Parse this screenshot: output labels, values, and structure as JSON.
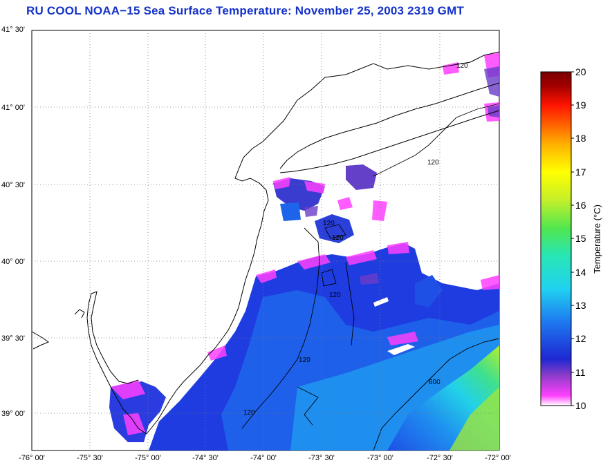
{
  "title": "RU COOL  NOAA−15  Sea Surface Temperature:  November 25, 2003 2319 GMT",
  "map": {
    "lat_labels": [
      "41° 30'",
      "41° 00'",
      "40° 30'",
      "40° 00'",
      "39° 30'",
      "39° 00'"
    ],
    "lon_labels": [
      "-76° 00'",
      "-75° 30'",
      "-75° 00'",
      "-74° 30'",
      "-74° 00'",
      "-73° 30'",
      "-73° 00'",
      "-72° 30'",
      "-72° 00'"
    ],
    "contour_labels": [
      "120",
      "120",
      "120",
      "120",
      "120",
      "120",
      "600",
      "120"
    ],
    "grid": true
  },
  "colorbar": {
    "title": "Temperature (°C)",
    "ticks": [
      "20",
      "19",
      "18",
      "17",
      "16",
      "15",
      "14",
      "13",
      "12",
      "11",
      "10"
    ],
    "min": 10,
    "max": 20,
    "colors": [
      "#ffffff",
      "#ff40ff",
      "#8c3cc8",
      "#1e28d2",
      "#1e78f0",
      "#20d2f0",
      "#28e6b4",
      "#50e650",
      "#c8f028",
      "#ffff00",
      "#ffb400",
      "#ff6400",
      "#ff1400",
      "#a00000",
      "#780000"
    ]
  }
}
